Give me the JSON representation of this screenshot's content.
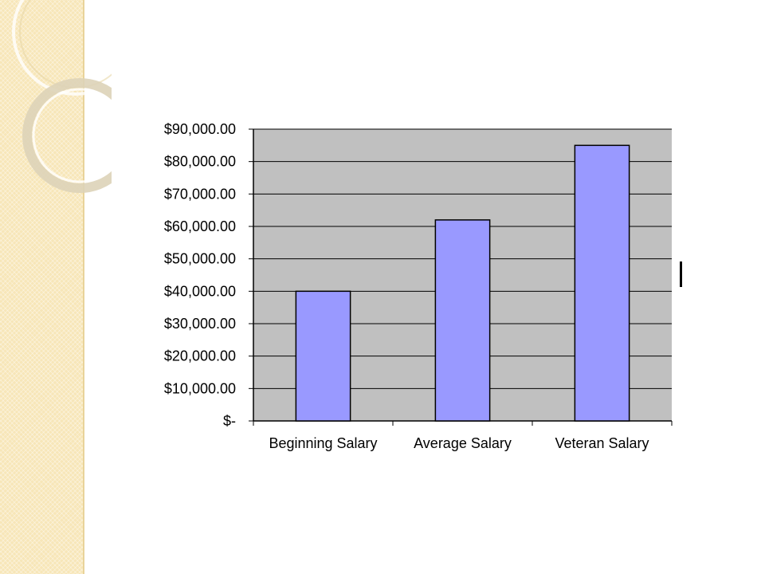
{
  "chart_data": {
    "type": "bar",
    "categories": [
      "Beginning Salary",
      "Average Salary",
      "Veteran Salary"
    ],
    "values": [
      40000,
      62000,
      85000
    ],
    "ylim": [
      0,
      90000
    ],
    "ytick_values": [
      0,
      10000,
      20000,
      30000,
      40000,
      50000,
      60000,
      70000,
      80000,
      90000
    ],
    "ytick_labels": [
      "$-",
      "$10,000.00",
      "$20,000.00",
      "$30,000.00",
      "$40,000.00",
      "$50,000.00",
      "$60,000.00",
      "$70,000.00",
      "$80,000.00",
      "$90,000.00"
    ],
    "grid": "horizontal",
    "legend": "none",
    "colors": {
      "bar_fill": "#9999ff",
      "bar_stroke": "#000000",
      "plot_background": "#c0c0c0",
      "gridline": "#000000"
    }
  }
}
